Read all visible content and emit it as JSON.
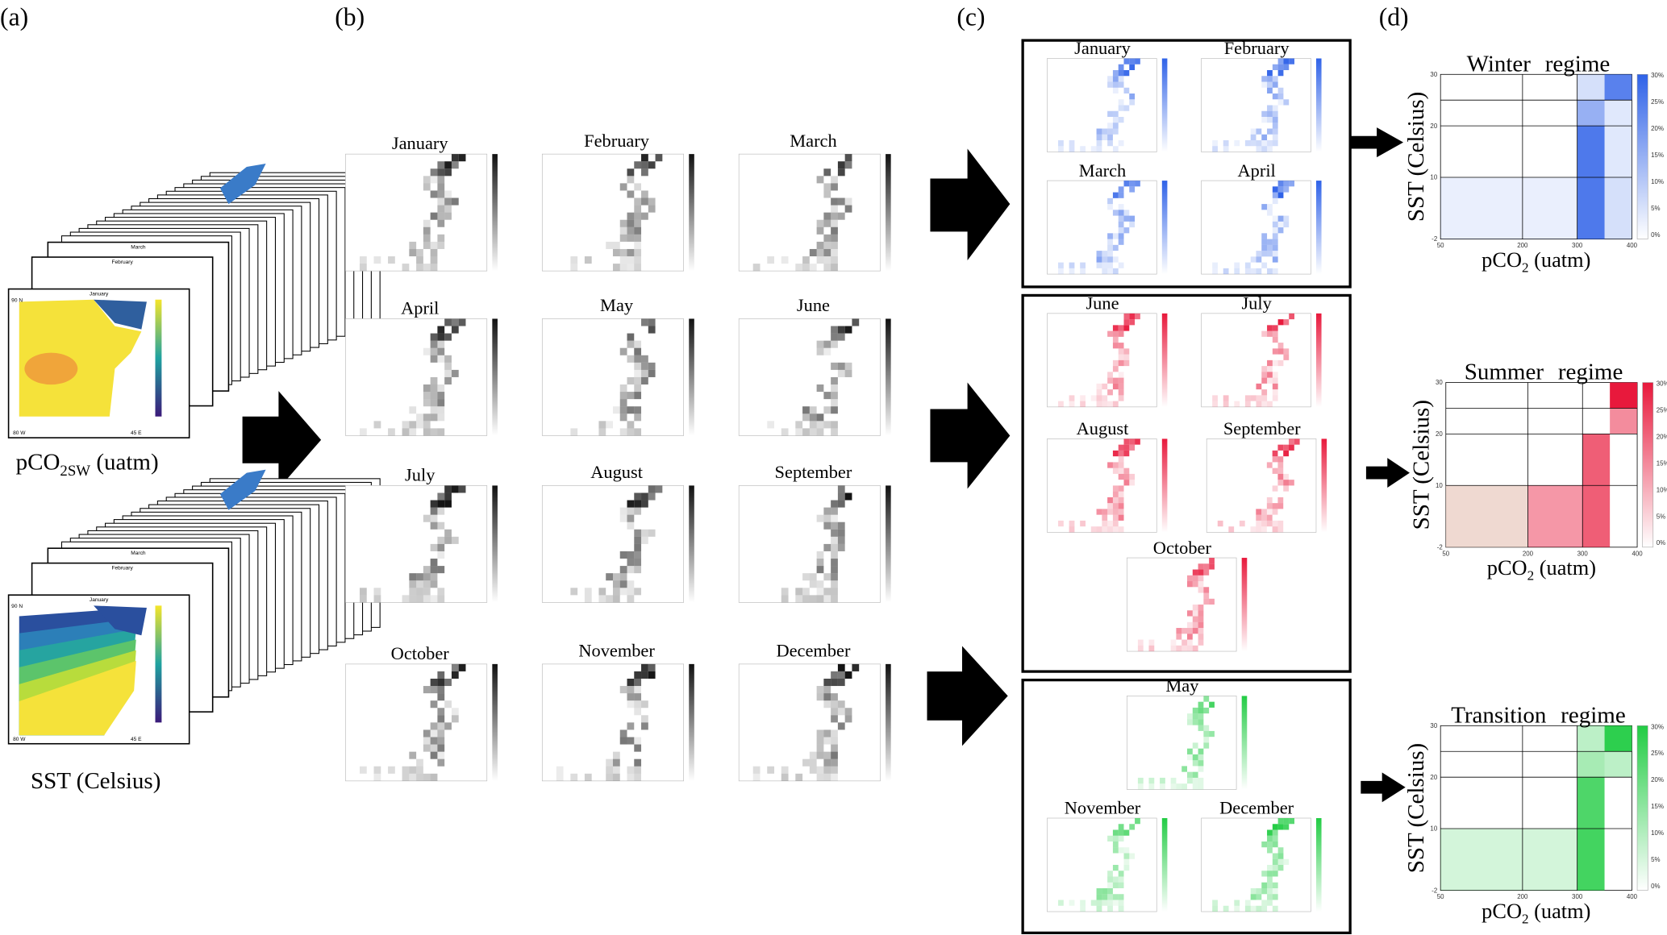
{
  "panel_labels": [
    "(a)",
    "(b)",
    "(c)",
    "(d)"
  ],
  "panel_a": {
    "pco2_maps": [
      "January",
      "February",
      "March"
    ],
    "sst_maps": [
      "January",
      "February",
      "March"
    ],
    "map_corners": [
      "90 N",
      "80 W",
      "45 E"
    ],
    "pco2_label": {
      "base": "pCO",
      "sub": "2SW",
      "unit": " (uatm)"
    },
    "sst_label": "SST (Celsius)"
  },
  "panel_b": {
    "months": [
      "January",
      "February",
      "March",
      "April",
      "May",
      "June",
      "July",
      "August",
      "September",
      "October",
      "November",
      "December"
    ]
  },
  "panel_c": {
    "winter": [
      "January",
      "February",
      "March",
      "April"
    ],
    "summer": [
      "June",
      "July",
      "August",
      "September",
      "October"
    ],
    "transition": [
      "May",
      "November",
      "December"
    ]
  },
  "panel_d": {
    "regimes": [
      {
        "title": "Winter regime",
        "color": "#2f62e8"
      },
      {
        "title": "Summer regime",
        "color": "#e8193c"
      },
      {
        "title": "Transition regime",
        "color": "#22cc44"
      }
    ],
    "y_label": "SST (Celsius)",
    "x_label": {
      "base": "pCO",
      "sub": "2",
      "unit": " (uatm)"
    },
    "xticks": [
      50,
      200,
      300,
      400
    ],
    "yticks": [
      -2,
      10,
      20,
      30
    ],
    "colorbar_ticks": [
      "30%",
      "25%",
      "20%",
      "15%",
      "10%",
      "5%",
      "0%"
    ]
  }
}
